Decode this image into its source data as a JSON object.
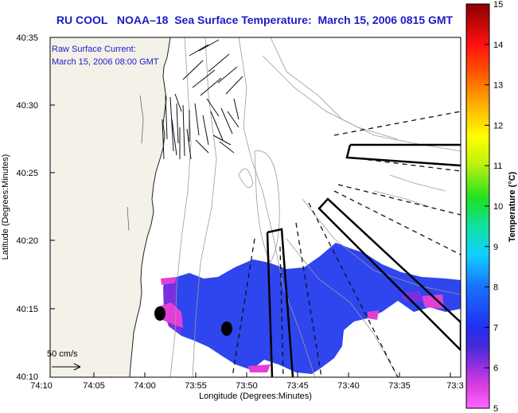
{
  "title": "RU COOL   NOAA–18  Sea Surface Temperature:  March 15, 2006 0815 GMT",
  "annotation": {
    "line1": "Raw Surface Current:",
    "line2": "March 15, 2006 08:00 GMT"
  },
  "scale_label": "50 cm/s",
  "xaxis": {
    "label": "Longitude (Degrees:Minutes)",
    "ticks": [
      "74:10",
      "74:05",
      "74:00",
      "73:55",
      "73:50",
      "73:45",
      "73:40",
      "73:35",
      "73:3"
    ]
  },
  "yaxis": {
    "label": "Latitude (Degrees:Minutes)",
    "ticks": [
      "40:35",
      "40:30",
      "40:25",
      "40:20",
      "40:15",
      "40:10"
    ]
  },
  "colorbar": {
    "label": "Temperature (°C)",
    "ticks": [
      "15",
      "14",
      "13",
      "12",
      "11",
      "10",
      "9",
      "8",
      "7",
      "6",
      "5"
    ],
    "min": 5,
    "max": 15
  },
  "colors": {
    "title": "#1b1bc8",
    "land": "#f4f1e8",
    "sst_main": "#2f45ee",
    "sst_purple": "#7a2fe0",
    "sst_magenta": "#e23fd8"
  }
}
